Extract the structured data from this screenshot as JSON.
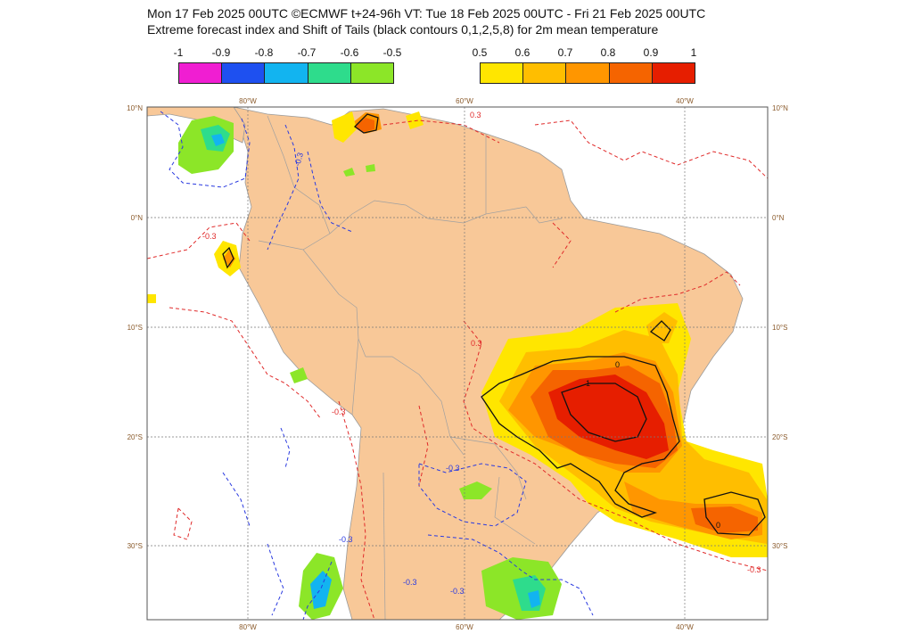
{
  "header": {
    "line1": "Mon 17 Feb 2025 00UTC ©ECMWF t+24-96h  VT: Tue 18 Feb 2025 00UTC - Fri 21 Feb 2025 00UTC",
    "line2": "Extreme forecast index and Shift of Tails (black contours 0,1,2,5,8) for 2m mean temperature"
  },
  "legend_cold": {
    "labels": [
      "-1",
      "-0.9",
      "-0.8",
      "-0.7",
      "-0.6",
      "-0.5"
    ],
    "colors": [
      "#f01ed2",
      "#1e50f0",
      "#12b4f0",
      "#2edc8c",
      "#8ce628"
    ]
  },
  "legend_warm": {
    "labels": [
      "0.5",
      "0.6",
      "0.7",
      "0.8",
      "0.9",
      "1"
    ],
    "colors": [
      "#ffe600",
      "#ffbe00",
      "#ff9600",
      "#f56400",
      "#e61e00"
    ]
  },
  "map": {
    "lon_ticks_top": [
      "80°W",
      "60°W",
      "40°W"
    ],
    "lon_ticks_bottom": [
      "80°W",
      "60°W",
      "40°W"
    ],
    "lat_ticks_left": [
      "10°N",
      "0°N",
      "10°S",
      "20°S",
      "30°S"
    ],
    "lat_ticks_right": [
      "10°N",
      "0°N",
      "10°S",
      "20°S",
      "30°S"
    ],
    "land_color": "#f8c898",
    "ocean_color": "#ffffff",
    "positive_contour_color": "#e02a2a",
    "negative_contour_color": "#2a3ae0",
    "contour_labels": {
      "neg": "-0.3",
      "pos": "0.3",
      "sot_zero": "0",
      "sot_one": "1"
    }
  }
}
